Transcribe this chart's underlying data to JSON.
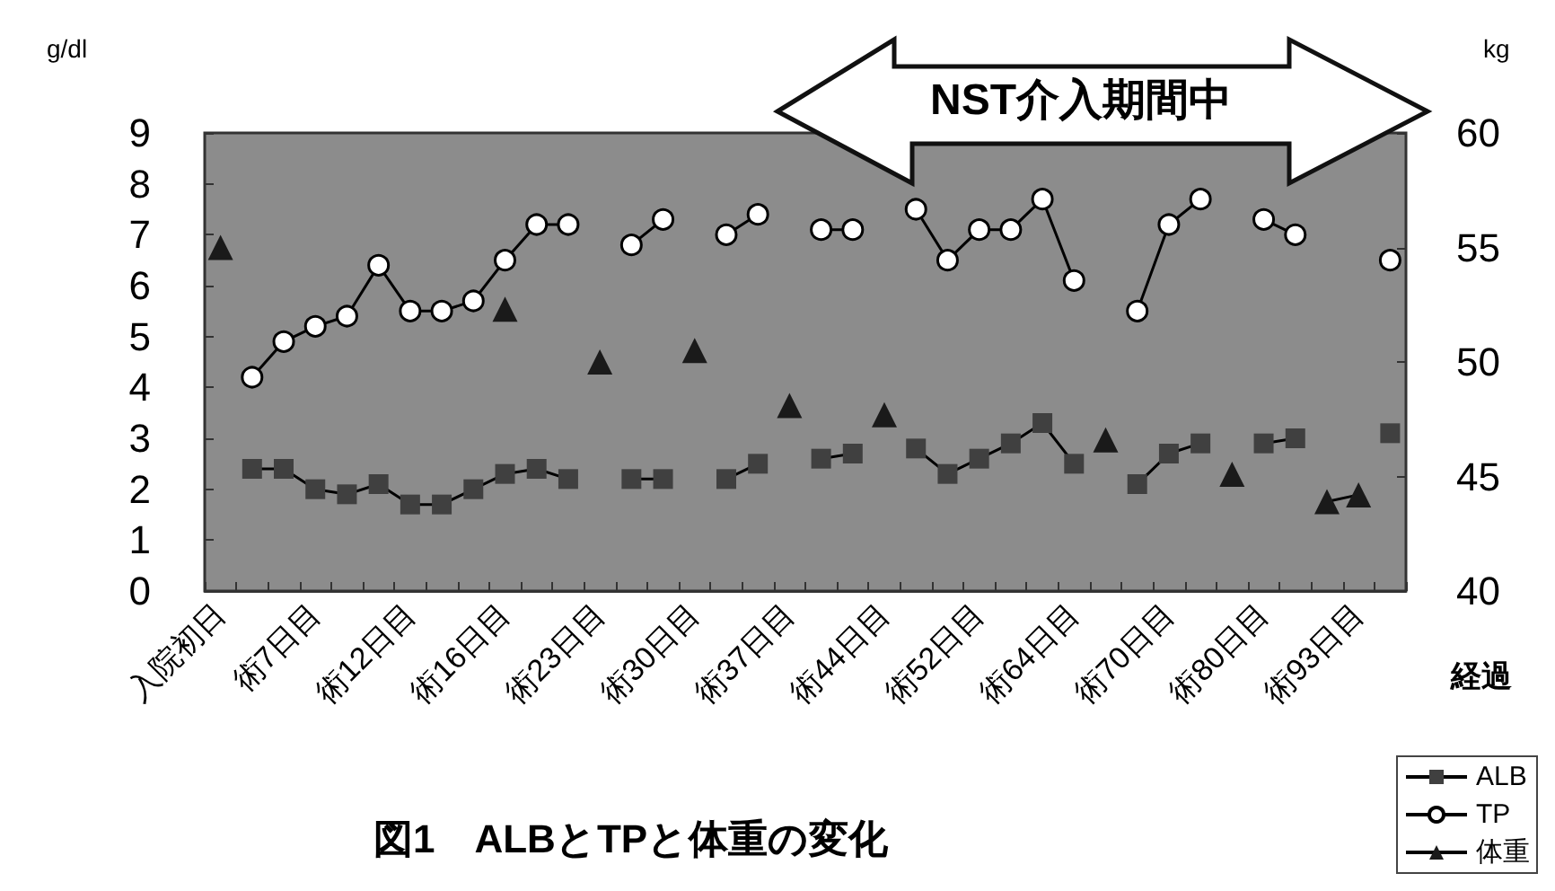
{
  "chart_data": {
    "type": "line",
    "title": "図1　ALBとTPと体重の変化",
    "xlabel": "経過",
    "ylabel": "g/dl",
    "y2label": "kg",
    "annotations": [
      "NST介入期間中"
    ],
    "categories": [
      "入院初日",
      null,
      null,
      "術7日目",
      null,
      null,
      "術12日目",
      null,
      null,
      "術16日目",
      null,
      null,
      "術23日目",
      null,
      null,
      "術30日目",
      null,
      null,
      "術37日目",
      null,
      null,
      "術44日目",
      null,
      null,
      "術52日目",
      null,
      null,
      "術64日目",
      null,
      null,
      "術70日目",
      null,
      null,
      "術80日目",
      null,
      null,
      "術93日目",
      null
    ],
    "series": [
      {
        "name": "ALB",
        "color": "#404040",
        "marker": "square",
        "values": [
          null,
          2.4,
          2.4,
          2.0,
          1.9,
          2.1,
          1.7,
          1.7,
          2.0,
          2.3,
          2.4,
          2.2,
          null,
          2.2,
          2.2,
          null,
          2.2,
          2.5,
          null,
          2.6,
          2.7,
          null,
          2.8,
          2.3,
          2.6,
          2.9,
          3.3,
          2.5,
          null,
          2.1,
          2.7,
          2.9,
          null,
          2.9,
          3.0,
          null,
          null,
          3.1
        ]
      },
      {
        "name": "TP",
        "color": "#ffffff",
        "marker": "circle",
        "values": [
          null,
          4.2,
          4.9,
          5.2,
          5.4,
          6.4,
          5.5,
          5.5,
          5.7,
          6.5,
          7.2,
          7.2,
          null,
          6.8,
          7.3,
          null,
          7.0,
          7.4,
          null,
          7.1,
          7.1,
          null,
          7.5,
          6.5,
          7.1,
          7.1,
          7.7,
          6.1,
          null,
          5.5,
          7.2,
          7.7,
          null,
          7.3,
          7.0,
          null,
          null,
          6.5
        ]
      },
      {
        "name": "体重",
        "color": "#1a1a1a",
        "marker": "triangle",
        "axis": "y2",
        "values": [
          55.0,
          null,
          null,
          null,
          null,
          null,
          null,
          null,
          null,
          52.3,
          null,
          null,
          50.0,
          null,
          null,
          50.5,
          null,
          null,
          48.1,
          null,
          null,
          47.7,
          null,
          null,
          null,
          null,
          null,
          null,
          46.6,
          null,
          null,
          null,
          45.1,
          null,
          null,
          43.9,
          44.2,
          null
        ]
      }
    ],
    "ylim": [
      0,
      9
    ],
    "yticks": [
      0,
      1,
      2,
      3,
      4,
      5,
      6,
      7,
      8,
      9
    ],
    "y2lim": [
      40,
      60
    ],
    "y2ticks": [
      40,
      45,
      50,
      55,
      60
    ],
    "grid": false,
    "legend": "bottom right",
    "line_style": "solid"
  }
}
